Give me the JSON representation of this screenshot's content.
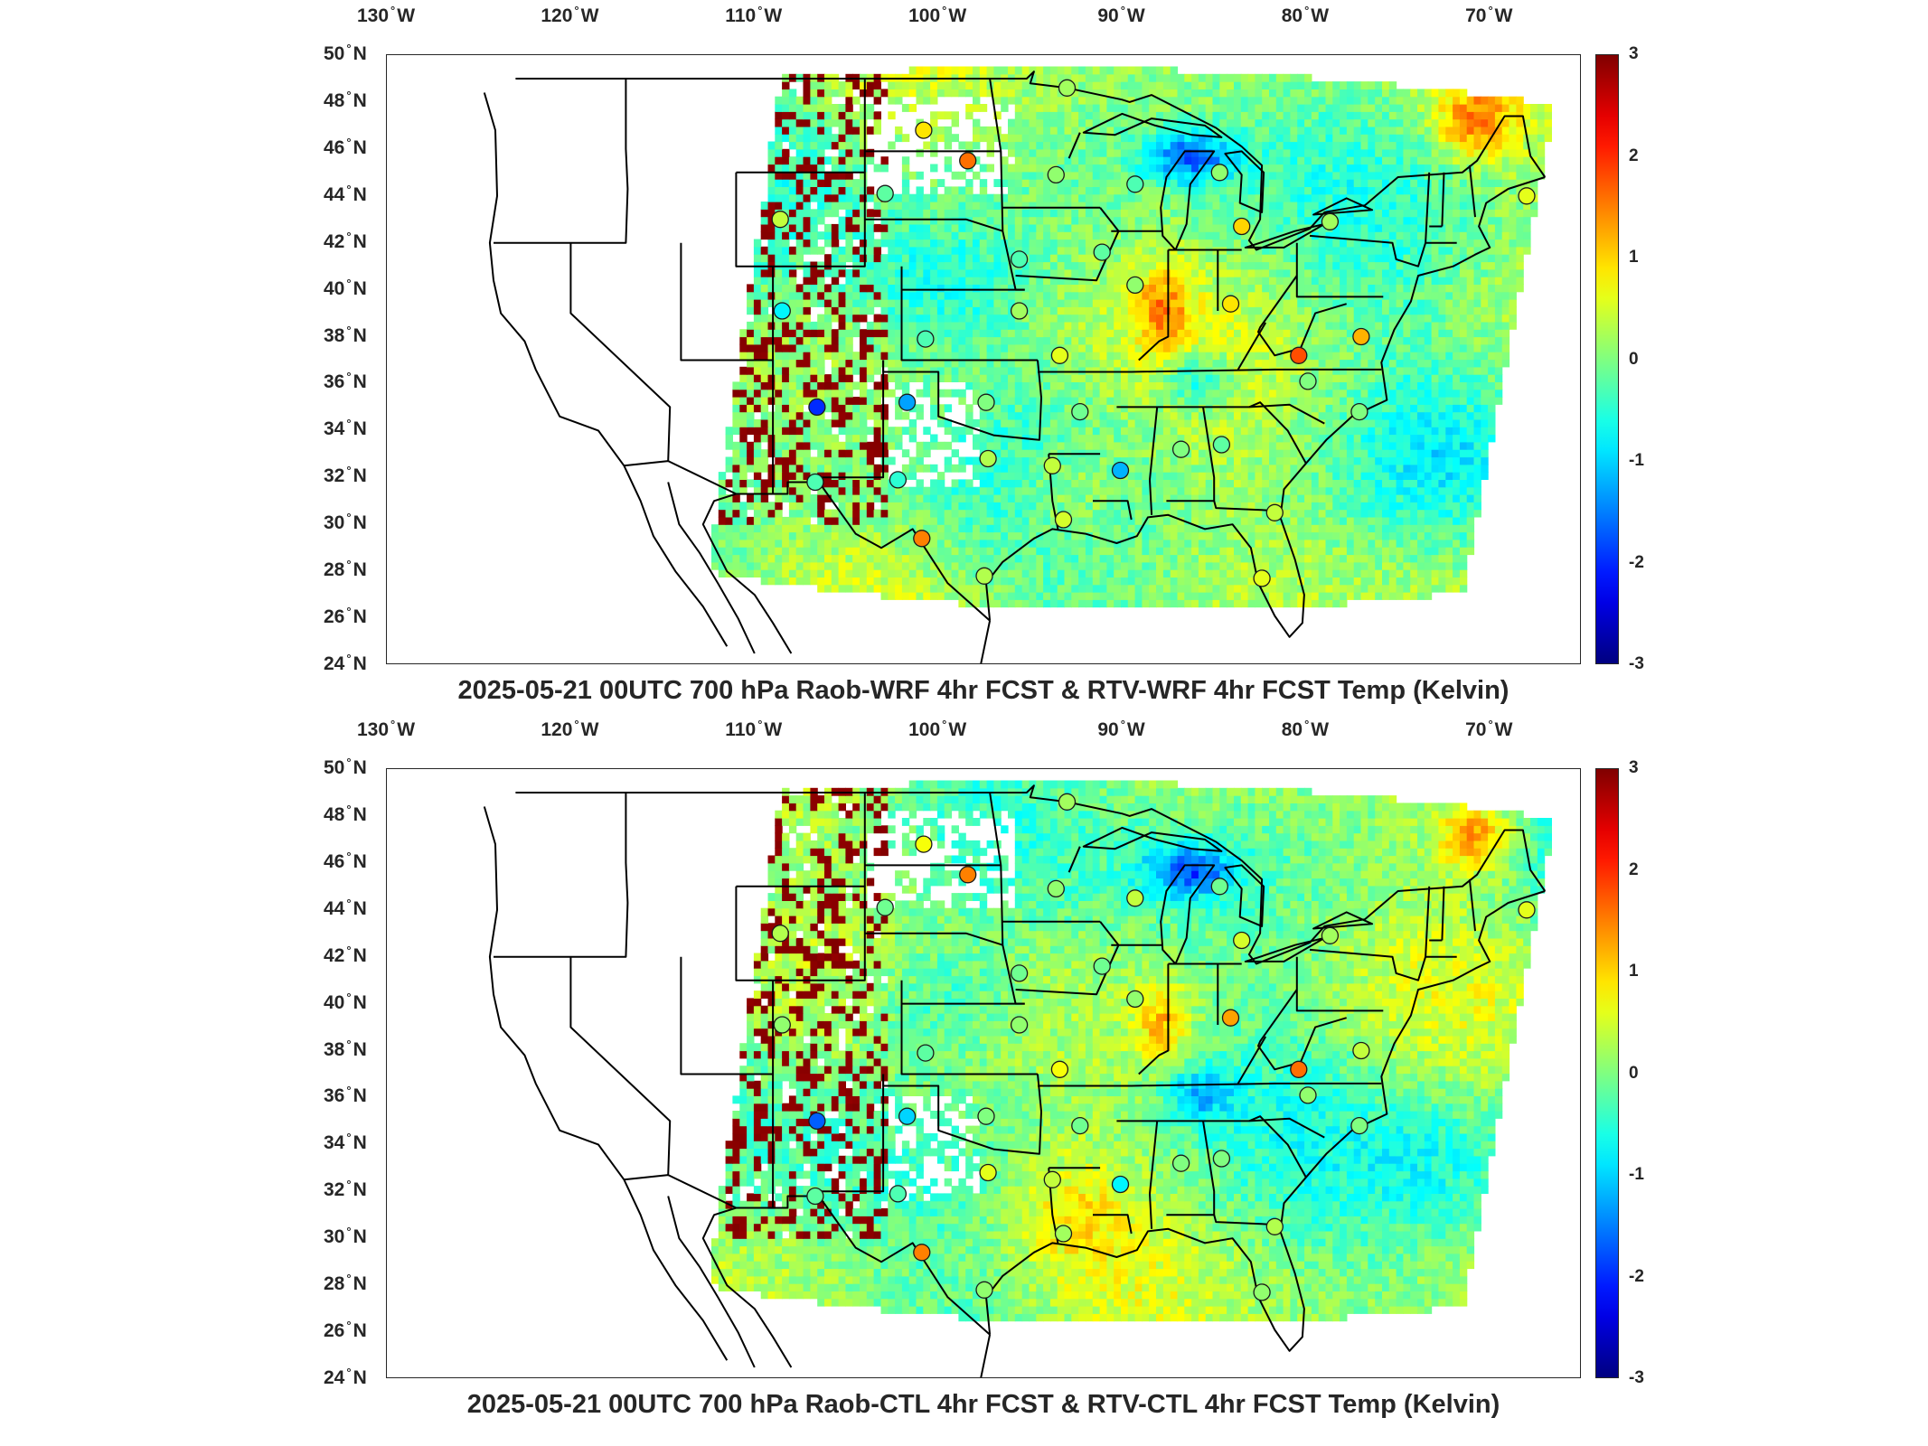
{
  "panels": [
    {
      "title": "2025-05-21 00UTC 700 hPa Raob-WRF 4hr FCST & RTV-WRF 4hr FCST Temp (Kelvin)",
      "stations": [
        {
          "lon": -93.0,
          "lat": 48.6,
          "diff": 0.2
        },
        {
          "lon": -100.8,
          "lat": 46.8,
          "diff": 0.9
        },
        {
          "lon": -98.4,
          "lat": 45.5,
          "diff": 1.6
        },
        {
          "lon": -93.6,
          "lat": 44.9,
          "diff": 0.1
        },
        {
          "lon": -89.3,
          "lat": 44.5,
          "diff": -0.3
        },
        {
          "lon": -84.7,
          "lat": 45.0,
          "diff": 0.1
        },
        {
          "lon": -102.9,
          "lat": 44.1,
          "diff": -0.2
        },
        {
          "lon": -108.6,
          "lat": 43.0,
          "diff": 0.4
        },
        {
          "lon": -83.5,
          "lat": 42.7,
          "diff": 1.0
        },
        {
          "lon": -78.7,
          "lat": 42.9,
          "diff": 0.2
        },
        {
          "lon": -68.0,
          "lat": 44.0,
          "diff": 0.6
        },
        {
          "lon": -91.1,
          "lat": 41.6,
          "diff": -0.2
        },
        {
          "lon": -95.6,
          "lat": 41.3,
          "diff": -0.3
        },
        {
          "lon": -89.3,
          "lat": 40.2,
          "diff": 0.1
        },
        {
          "lon": -84.1,
          "lat": 39.4,
          "diff": 0.9
        },
        {
          "lon": -108.5,
          "lat": 39.1,
          "diff": -0.8
        },
        {
          "lon": -95.6,
          "lat": 39.1,
          "diff": 0.2
        },
        {
          "lon": -100.7,
          "lat": 37.9,
          "diff": -0.3
        },
        {
          "lon": -93.4,
          "lat": 37.2,
          "diff": 0.6
        },
        {
          "lon": -80.4,
          "lat": 37.2,
          "diff": 1.8
        },
        {
          "lon": -77.0,
          "lat": 38.0,
          "diff": 1.2
        },
        {
          "lon": -79.9,
          "lat": 36.1,
          "diff": 0.0
        },
        {
          "lon": -106.6,
          "lat": 35.0,
          "diff": -2.0
        },
        {
          "lon": -101.7,
          "lat": 35.2,
          "diff": -1.3
        },
        {
          "lon": -97.4,
          "lat": 35.2,
          "diff": 0.0
        },
        {
          "lon": -92.3,
          "lat": 34.8,
          "diff": -0.1
        },
        {
          "lon": -77.1,
          "lat": 34.8,
          "diff": 0.0
        },
        {
          "lon": -86.8,
          "lat": 33.2,
          "diff": 0.0
        },
        {
          "lon": -84.6,
          "lat": 33.4,
          "diff": -0.2
        },
        {
          "lon": -97.3,
          "lat": 32.8,
          "diff": 0.3
        },
        {
          "lon": -93.8,
          "lat": 32.5,
          "diff": 0.4
        },
        {
          "lon": -90.1,
          "lat": 32.3,
          "diff": -1.2
        },
        {
          "lon": -102.2,
          "lat": 31.9,
          "diff": -0.5
        },
        {
          "lon": -106.7,
          "lat": 31.8,
          "diff": -0.3
        },
        {
          "lon": -93.2,
          "lat": 30.2,
          "diff": 0.5
        },
        {
          "lon": -81.7,
          "lat": 30.5,
          "diff": 0.4
        },
        {
          "lon": -100.9,
          "lat": 29.4,
          "diff": 1.5
        },
        {
          "lon": -97.5,
          "lat": 27.8,
          "diff": 0.3
        },
        {
          "lon": -82.4,
          "lat": 27.7,
          "diff": 0.6
        }
      ]
    },
    {
      "title": "2025-05-21 00UTC 700 hPa Raob-CTL 4hr FCST & RTV-CTL 4hr FCST Temp (Kelvin)",
      "stations": [
        {
          "lon": -93.0,
          "lat": 48.6,
          "diff": 0.2
        },
        {
          "lon": -100.8,
          "lat": 46.8,
          "diff": 0.7
        },
        {
          "lon": -98.4,
          "lat": 45.5,
          "diff": 1.5
        },
        {
          "lon": -93.6,
          "lat": 44.9,
          "diff": 0.1
        },
        {
          "lon": -89.3,
          "lat": 44.5,
          "diff": 0.4
        },
        {
          "lon": -84.7,
          "lat": 45.0,
          "diff": -0.1
        },
        {
          "lon": -102.9,
          "lat": 44.1,
          "diff": -0.1
        },
        {
          "lon": -108.6,
          "lat": 43.0,
          "diff": 0.3
        },
        {
          "lon": -83.5,
          "lat": 42.7,
          "diff": 0.5
        },
        {
          "lon": -78.7,
          "lat": 42.9,
          "diff": 0.2
        },
        {
          "lon": -68.0,
          "lat": 44.0,
          "diff": 0.6
        },
        {
          "lon": -91.1,
          "lat": 41.6,
          "diff": -0.1
        },
        {
          "lon": -95.6,
          "lat": 41.3,
          "diff": -0.1
        },
        {
          "lon": -89.3,
          "lat": 40.2,
          "diff": 0.1
        },
        {
          "lon": -84.1,
          "lat": 39.4,
          "diff": 1.3
        },
        {
          "lon": -108.5,
          "lat": 39.1,
          "diff": 0.1
        },
        {
          "lon": -95.6,
          "lat": 39.1,
          "diff": 0.1
        },
        {
          "lon": -100.7,
          "lat": 37.9,
          "diff": -0.2
        },
        {
          "lon": -93.4,
          "lat": 37.2,
          "diff": 0.7
        },
        {
          "lon": -80.4,
          "lat": 37.2,
          "diff": 1.6
        },
        {
          "lon": -77.0,
          "lat": 38.0,
          "diff": 0.4
        },
        {
          "lon": -79.9,
          "lat": 36.1,
          "diff": 0.1
        },
        {
          "lon": -106.6,
          "lat": 35.0,
          "diff": -1.7
        },
        {
          "lon": -101.7,
          "lat": 35.2,
          "diff": -1.0
        },
        {
          "lon": -97.4,
          "lat": 35.2,
          "diff": 0.0
        },
        {
          "lon": -92.3,
          "lat": 34.8,
          "diff": -0.1
        },
        {
          "lon": -77.1,
          "lat": 34.8,
          "diff": 0.0
        },
        {
          "lon": -86.8,
          "lat": 33.2,
          "diff": 0.0
        },
        {
          "lon": -84.6,
          "lat": 33.4,
          "diff": 0.0
        },
        {
          "lon": -97.3,
          "lat": 32.8,
          "diff": 0.6
        },
        {
          "lon": -93.8,
          "lat": 32.5,
          "diff": 0.4
        },
        {
          "lon": -90.1,
          "lat": 32.3,
          "diff": -0.8
        },
        {
          "lon": -102.2,
          "lat": 31.9,
          "diff": -0.3
        },
        {
          "lon": -106.7,
          "lat": 31.8,
          "diff": -0.2
        },
        {
          "lon": -93.2,
          "lat": 30.2,
          "diff": 0.2
        },
        {
          "lon": -81.7,
          "lat": 30.5,
          "diff": 0.3
        },
        {
          "lon": -100.9,
          "lat": 29.4,
          "diff": 1.5
        },
        {
          "lon": -97.5,
          "lat": 27.8,
          "diff": 0.1
        },
        {
          "lon": -82.4,
          "lat": 27.7,
          "diff": 0.1
        }
      ]
    }
  ],
  "map": {
    "lon_range": [
      -130,
      -65
    ],
    "lat_range": [
      24,
      50
    ],
    "lon_ticks": [
      {
        "lon": -130,
        "num": "130",
        "hemi": "W"
      },
      {
        "lon": -120,
        "num": "120",
        "hemi": "W"
      },
      {
        "lon": -110,
        "num": "110",
        "hemi": "W"
      },
      {
        "lon": -100,
        "num": "100",
        "hemi": "W"
      },
      {
        "lon": -90,
        "num": "90",
        "hemi": "W"
      },
      {
        "lon": -80,
        "num": "80",
        "hemi": "W"
      },
      {
        "lon": -70,
        "num": "70",
        "hemi": "W"
      }
    ],
    "lat_ticks": [
      {
        "lat": 50,
        "num": "50",
        "hemi": "N"
      },
      {
        "lat": 48,
        "num": "48",
        "hemi": "N"
      },
      {
        "lat": 46,
        "num": "46",
        "hemi": "N"
      },
      {
        "lat": 44,
        "num": "44",
        "hemi": "N"
      },
      {
        "lat": 42,
        "num": "42",
        "hemi": "N"
      },
      {
        "lat": 40,
        "num": "40",
        "hemi": "N"
      },
      {
        "lat": 38,
        "num": "38",
        "hemi": "N"
      },
      {
        "lat": 36,
        "num": "36",
        "hemi": "N"
      },
      {
        "lat": 34,
        "num": "34",
        "hemi": "N"
      },
      {
        "lat": 32,
        "num": "32",
        "hemi": "N"
      },
      {
        "lat": 30,
        "num": "30",
        "hemi": "N"
      },
      {
        "lat": 28,
        "num": "28",
        "hemi": "N"
      },
      {
        "lat": 26,
        "num": "26",
        "hemi": "N"
      },
      {
        "lat": 24,
        "num": "24",
        "hemi": "N"
      }
    ],
    "colorbar": {
      "min": -3,
      "max": 3,
      "ticks": [
        "3",
        "2",
        "1",
        "0",
        "-1",
        "-2",
        "-3"
      ],
      "colormap": "jet"
    }
  }
}
